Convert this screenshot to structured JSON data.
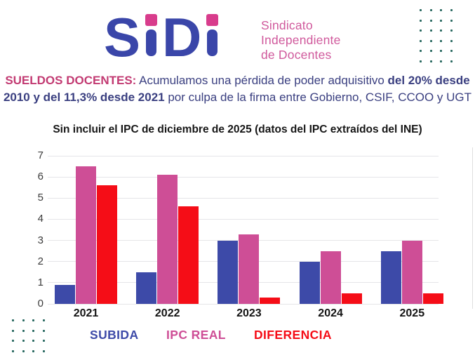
{
  "logo": {
    "wordmark": "SiDi",
    "letters": [
      "S",
      "D"
    ],
    "tagline_lines": [
      "Sindicato",
      "Independiente",
      "de Docentes"
    ]
  },
  "headline": {
    "line1": [
      {
        "t": "SUELDOS DOCENTES:",
        "b": true,
        "c": "pink"
      },
      {
        "t": " Acumulamos una pérdida de poder adquisitivo ",
        "b": false
      },
      {
        "t": "del 20% desde",
        "b": true
      }
    ],
    "line2": [
      {
        "t": "2010 y del 11,3% desde 2021",
        "b": true
      },
      {
        "t": " por culpa de la firma entre Gobierno, CSIF, CCOO y UGT",
        "b": false
      }
    ]
  },
  "chart_data": {
    "type": "bar",
    "title": "Sin incluir el IPC de diciembre de 2025 (datos del IPC extraídos del INE)",
    "categories": [
      "2021",
      "2022",
      "2023",
      "2024",
      "2025"
    ],
    "series": [
      {
        "name": "SUBIDA",
        "color": "#3D4AA8",
        "values": [
          0.9,
          1.5,
          3.0,
          2.0,
          2.5
        ]
      },
      {
        "name": "IPC REAL",
        "color": "#CE4E96",
        "values": [
          6.5,
          6.1,
          3.3,
          2.5,
          3.0
        ]
      },
      {
        "name": "DIFERENCIA",
        "color": "#F50D17",
        "values": [
          5.6,
          4.6,
          0.3,
          0.5,
          0.5
        ]
      }
    ],
    "xlabel": "",
    "ylabel": "",
    "ylim": [
      0,
      7
    ],
    "yticks": [
      0,
      1,
      2,
      3,
      4,
      5,
      6,
      7
    ],
    "grid": true,
    "legend_position": "bottom"
  },
  "colors": {
    "logo_blue": "#3A46A9",
    "logo_pink": "#D83C8C",
    "tagline_pink": "#D0599C",
    "headline_pink": "#C23A72",
    "headline_blue": "#3A3F80",
    "dot_teal": "#27685F",
    "grid": "#E5E5E8",
    "bar_blue": "#3D4AA8",
    "bar_pink": "#CE4E96",
    "bar_red": "#F50D17"
  }
}
